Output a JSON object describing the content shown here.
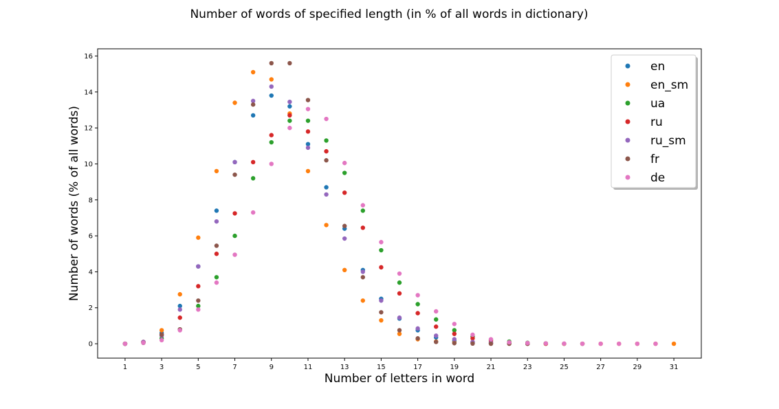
{
  "chart_data": {
    "type": "scatter",
    "title": "Number of words of specified length (in % of all words in dictionary)",
    "xlabel": "Number of letters in word",
    "ylabel": "Number of words (% of all words)",
    "xlim": [
      -0.5,
      32.5
    ],
    "ylim": [
      -0.8,
      16.4
    ],
    "xticks": [
      1,
      3,
      5,
      7,
      9,
      11,
      13,
      15,
      17,
      19,
      21,
      23,
      25,
      27,
      29,
      31
    ],
    "yticks": [
      0,
      2,
      4,
      6,
      8,
      10,
      12,
      14,
      16
    ],
    "legend_position": "top-right",
    "grid": false,
    "series": [
      {
        "name": "en",
        "color": "#1f77b4",
        "x": [
          1,
          2,
          3,
          4,
          5,
          6,
          7,
          8,
          9,
          10,
          11,
          12,
          13,
          14,
          15,
          16,
          17,
          18,
          19,
          20,
          21,
          22,
          23,
          24,
          25,
          26
        ],
        "y": [
          0.0,
          0.1,
          0.6,
          2.1,
          4.3,
          7.4,
          10.1,
          12.7,
          13.8,
          13.2,
          11.1,
          8.7,
          6.4,
          4.1,
          2.5,
          1.4,
          0.75,
          0.35,
          0.15,
          0.08,
          0.04,
          0.02,
          0.01,
          0.0,
          0.0,
          0.0
        ]
      },
      {
        "name": "en_sm",
        "color": "#ff7f0e",
        "x": [
          1,
          2,
          3,
          4,
          5,
          6,
          7,
          8,
          9,
          10,
          11,
          12,
          13,
          14,
          15,
          16,
          17,
          18,
          19,
          20,
          21,
          22,
          23,
          24,
          25,
          26,
          27,
          28,
          29,
          30,
          31
        ],
        "y": [
          0.0,
          0.1,
          0.75,
          2.75,
          5.9,
          9.6,
          13.4,
          15.1,
          14.7,
          12.8,
          9.6,
          6.6,
          4.1,
          2.4,
          1.3,
          0.55,
          0.25,
          0.12,
          0.06,
          0.03,
          0.02,
          0.01,
          0.0,
          0.0,
          0.0,
          0.0,
          0.0,
          0.0,
          0.0,
          0.0,
          0.0
        ]
      },
      {
        "name": "ua",
        "color": "#2ca02c",
        "x": [
          1,
          2,
          3,
          4,
          5,
          6,
          7,
          8,
          9,
          10,
          11,
          12,
          13,
          14,
          15,
          16,
          17,
          18,
          19,
          20,
          21,
          22,
          23,
          24
        ],
        "y": [
          0.0,
          0.05,
          0.3,
          0.8,
          2.1,
          3.7,
          6.0,
          9.2,
          11.2,
          12.4,
          12.4,
          11.3,
          9.5,
          7.4,
          5.2,
          3.4,
          2.2,
          1.35,
          0.75,
          0.4,
          0.22,
          0.12,
          0.05,
          0.02
        ]
      },
      {
        "name": "ru",
        "color": "#d62728",
        "x": [
          1,
          2,
          3,
          4,
          5,
          6,
          7,
          8,
          9,
          10,
          11,
          12,
          13,
          14,
          15,
          16,
          17,
          18,
          19,
          20,
          21,
          22,
          23,
          24
        ],
        "y": [
          0.0,
          0.1,
          0.5,
          1.45,
          3.2,
          5.0,
          7.25,
          10.1,
          11.6,
          12.7,
          11.8,
          10.7,
          8.4,
          6.45,
          4.25,
          2.8,
          1.7,
          0.95,
          0.55,
          0.3,
          0.15,
          0.07,
          0.03,
          0.01
        ]
      },
      {
        "name": "ru_sm",
        "color": "#9467bd",
        "x": [
          1,
          2,
          3,
          4,
          5,
          6,
          7,
          8,
          9,
          10,
          11,
          12,
          13,
          14,
          15,
          16,
          17,
          18,
          19,
          20,
          21,
          22,
          23
        ],
        "y": [
          0.0,
          0.1,
          0.45,
          1.9,
          4.3,
          6.8,
          10.1,
          13.5,
          14.3,
          13.45,
          10.9,
          8.3,
          5.85,
          4.0,
          2.4,
          1.45,
          0.85,
          0.45,
          0.25,
          0.1,
          0.05,
          0.02,
          0.0
        ]
      },
      {
        "name": "fr",
        "color": "#8c564b",
        "x": [
          1,
          2,
          3,
          4,
          5,
          6,
          7,
          8,
          9,
          10,
          11,
          12,
          13,
          14,
          15,
          16,
          17,
          18,
          19,
          20,
          21,
          22,
          23
        ],
        "y": [
          0.0,
          0.05,
          0.5,
          0.8,
          2.4,
          5.45,
          9.4,
          13.3,
          15.6,
          15.6,
          13.55,
          10.2,
          6.55,
          3.7,
          1.75,
          0.75,
          0.3,
          0.1,
          0.03,
          0.01,
          0.0,
          0.0,
          0.0
        ]
      },
      {
        "name": "de",
        "color": "#e377c2",
        "x": [
          1,
          2,
          3,
          4,
          5,
          6,
          7,
          8,
          9,
          10,
          11,
          12,
          13,
          14,
          15,
          16,
          17,
          18,
          19,
          20,
          21,
          22,
          23,
          24,
          25,
          26,
          27,
          28,
          29,
          30
        ],
        "y": [
          0.0,
          0.05,
          0.2,
          0.75,
          1.9,
          3.4,
          4.95,
          7.3,
          10.0,
          12.0,
          13.05,
          12.5,
          10.05,
          7.7,
          5.65,
          3.9,
          2.7,
          1.8,
          1.1,
          0.5,
          0.25,
          0.08,
          0.04,
          0.02,
          0.01,
          0.0,
          0.0,
          0.0,
          0.0,
          0.0
        ]
      }
    ]
  }
}
